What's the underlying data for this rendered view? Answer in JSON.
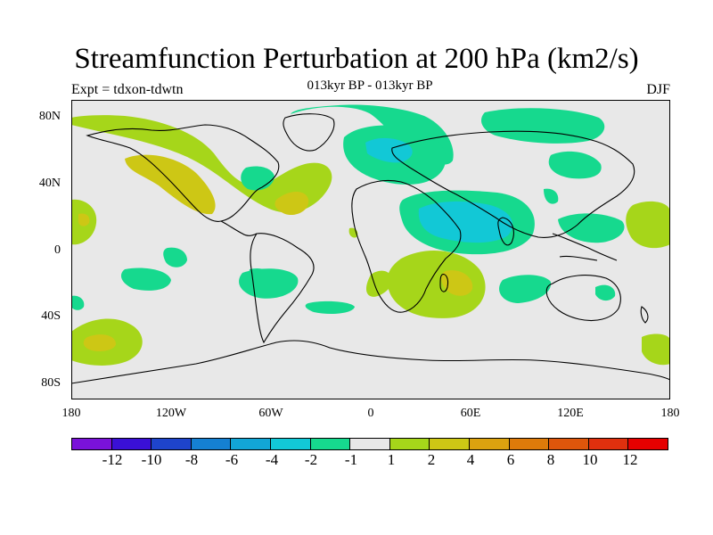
{
  "title": "Streamfunction Perturbation at 200 hPa (km2/s)",
  "subtitle": "013kyr BP - 013kyr BP",
  "left_label": "Expt = tdxon-tdwtn",
  "right_label": "DJF",
  "y_ticks": [
    "80N",
    "40N",
    "0",
    "40S",
    "80S"
  ],
  "x_ticks": [
    "180",
    "120W",
    "60W",
    "0",
    "60E",
    "120E",
    "180"
  ],
  "colorbar": {
    "colors": [
      "#7a12d9",
      "#3a10d6",
      "#1e44cc",
      "#1580d2",
      "#12a6d6",
      "#12c8d6",
      "#16d98e",
      "#e8e8e8",
      "#a6d61a",
      "#cdc715",
      "#dca20f",
      "#de7b0a",
      "#de560b",
      "#e0300e",
      "#e60000"
    ],
    "labels": [
      "-12",
      "-10",
      "-8",
      "-6",
      "-4",
      "-2",
      "-1",
      "1",
      "2",
      "4",
      "6",
      "8",
      "10",
      "12"
    ]
  },
  "map": {
    "background_color": "#e8e8e8",
    "lon_range": [
      -180,
      180
    ],
    "lat_range": [
      -90,
      90
    ]
  }
}
